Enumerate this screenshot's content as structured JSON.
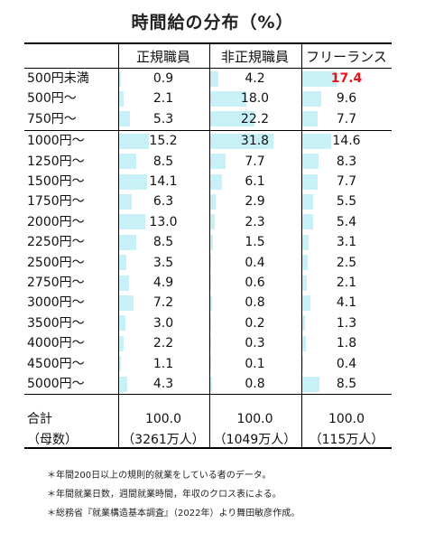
{
  "chart_data": {
    "type": "table",
    "title": "時間給の分布（%）",
    "columns": [
      "正規職員",
      "非正規職員",
      "フリーランス"
    ],
    "rows": [
      {
        "label": "500円未満",
        "values": [
          0.9,
          4.2,
          17.4
        ],
        "display": [
          "0.9",
          "4.2",
          "17.4"
        ]
      },
      {
        "label": "500円〜",
        "values": [
          2.1,
          18.0,
          9.6
        ],
        "display": [
          "2.1",
          "18.0",
          "9.6"
        ]
      },
      {
        "label": "750円〜",
        "values": [
          5.3,
          22.2,
          7.7
        ],
        "display": [
          "5.3",
          "22.2",
          "7.7"
        ]
      },
      {
        "label": "1000円〜",
        "values": [
          15.2,
          31.8,
          14.6
        ],
        "display": [
          "15.2",
          "31.8",
          "14.6"
        ]
      },
      {
        "label": "1250円〜",
        "values": [
          8.5,
          7.7,
          8.3
        ],
        "display": [
          "8.5",
          "7.7",
          "8.3"
        ]
      },
      {
        "label": "1500円〜",
        "values": [
          14.1,
          6.1,
          7.7
        ],
        "display": [
          "14.1",
          "6.1",
          "7.7"
        ]
      },
      {
        "label": "1750円〜",
        "values": [
          6.3,
          2.9,
          5.5
        ],
        "display": [
          "6.3",
          "2.9",
          "5.5"
        ]
      },
      {
        "label": "2000円〜",
        "values": [
          13.0,
          2.3,
          5.4
        ],
        "display": [
          "13.0",
          "2.3",
          "5.4"
        ]
      },
      {
        "label": "2250円〜",
        "values": [
          8.5,
          1.5,
          3.1
        ],
        "display": [
          "8.5",
          "1.5",
          "3.1"
        ]
      },
      {
        "label": "2500円〜",
        "values": [
          3.5,
          0.4,
          2.5
        ],
        "display": [
          "3.5",
          "0.4",
          "2.5"
        ]
      },
      {
        "label": "2750円〜",
        "values": [
          4.9,
          0.6,
          2.1
        ],
        "display": [
          "4.9",
          "0.6",
          "2.1"
        ]
      },
      {
        "label": "3000円〜",
        "values": [
          7.2,
          0.8,
          4.1
        ],
        "display": [
          "7.2",
          "0.8",
          "4.1"
        ]
      },
      {
        "label": "3500円〜",
        "values": [
          3.0,
          0.2,
          1.3
        ],
        "display": [
          "3.0",
          "0.2",
          "1.3"
        ]
      },
      {
        "label": "4000円〜",
        "values": [
          2.2,
          0.3,
          1.8
        ],
        "display": [
          "2.2",
          "0.3",
          "1.8"
        ]
      },
      {
        "label": "4500円〜",
        "values": [
          1.1,
          0.1,
          0.4
        ],
        "display": [
          "1.1",
          "0.1",
          "0.4"
        ]
      },
      {
        "label": "5000円〜",
        "values": [
          4.3,
          0.8,
          8.5
        ],
        "display": [
          "4.3",
          "0.8",
          "8.5"
        ]
      }
    ],
    "highlight": {
      "row": 0,
      "col": 2,
      "color": "#e8141c"
    },
    "bar_color": "#c7f1f7",
    "total": {
      "label": "合計",
      "values": [
        "100.0",
        "100.0",
        "100.0"
      ]
    },
    "base": {
      "label": "（母数）",
      "values": [
        "（3261万人）",
        "（1049万人）",
        "（115万人）"
      ]
    }
  },
  "notes": [
    "＊年間200日以上の規則的就業をしている者のデータ。",
    "＊年間就業日数，週間就業時間，年収のクロス表による。",
    "＊総務省『就業構造基本調査』（2022年）より舞田敏彦作成。"
  ]
}
